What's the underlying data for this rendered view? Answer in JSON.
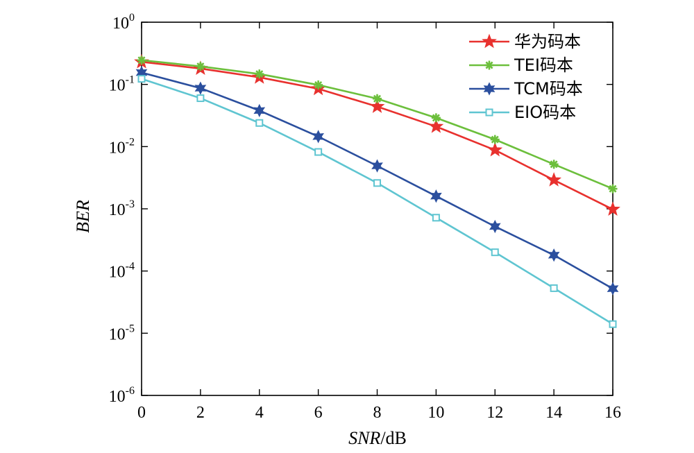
{
  "chart_data": {
    "type": "line",
    "xlabel_italic": "SNR",
    "xlabel_unit": "/dB",
    "ylabel": "BER",
    "xlim": [
      0,
      16
    ],
    "ylim": [
      1e-06,
      1
    ],
    "yscale": "log",
    "x_ticks": [
      "0",
      "2",
      "4",
      "6",
      "8",
      "10",
      "12",
      "14",
      "16"
    ],
    "y_ticks": [
      {
        "base": "10",
        "exp": "0"
      },
      {
        "base": "10",
        "exp": "-1"
      },
      {
        "base": "10",
        "exp": "-2"
      },
      {
        "base": "10",
        "exp": "-3"
      },
      {
        "base": "10",
        "exp": "-4"
      },
      {
        "base": "10",
        "exp": "-5"
      },
      {
        "base": "10",
        "exp": "-6"
      }
    ],
    "grid": false,
    "legend_position": "top-right",
    "x": [
      0,
      2,
      4,
      6,
      8,
      10,
      12,
      14,
      16
    ],
    "series": [
      {
        "name": "华为码本",
        "color": "#e8312e",
        "marker": "star5",
        "values": [
          0.23,
          0.18,
          0.13,
          0.085,
          0.044,
          0.021,
          0.0088,
          0.0029,
          0.00098
        ]
      },
      {
        "name": "TEI码本",
        "color": "#6cbf3c",
        "marker": "asterisk",
        "values": [
          0.245,
          0.195,
          0.147,
          0.098,
          0.059,
          0.029,
          0.013,
          0.0052,
          0.0021
        ]
      },
      {
        "name": "TCM码本",
        "color": "#2b4f9e",
        "marker": "star6",
        "values": [
          0.155,
          0.087,
          0.038,
          0.0145,
          0.0049,
          0.0016,
          0.00052,
          0.00018,
          5.2e-05
        ]
      },
      {
        "name": "EIO码本",
        "color": "#5fc5d1",
        "marker": "square",
        "values": [
          0.123,
          0.06,
          0.024,
          0.0082,
          0.0026,
          0.00072,
          0.0002,
          5.3e-05,
          1.4e-05
        ]
      }
    ]
  }
}
